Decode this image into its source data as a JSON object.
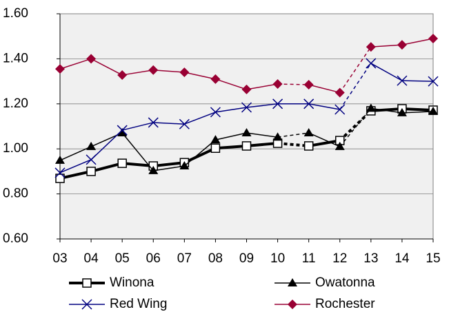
{
  "chart_data": {
    "type": "line",
    "categories": [
      "03",
      "04",
      "05",
      "06",
      "07",
      "08",
      "09",
      "10",
      "11",
      "12",
      "13",
      "14",
      "15"
    ],
    "ylim": [
      0.6,
      1.6
    ],
    "yticks": [
      {
        "value": 0.6,
        "label": "0.60"
      },
      {
        "value": 0.8,
        "label": "0.80"
      },
      {
        "value": 1.0,
        "label": "1.00"
      },
      {
        "value": 1.2,
        "label": "1.20"
      },
      {
        "value": 1.4,
        "label": "1.40"
      },
      {
        "value": 1.6,
        "label": "1.60"
      }
    ],
    "grid": true,
    "legend": "bottom",
    "series": [
      {
        "name": "Winona",
        "color": "#000000",
        "marker": "square",
        "width": 4,
        "dashed_after": [
          7,
          9
        ],
        "values": [
          0.869,
          0.9,
          0.936,
          0.924,
          0.939,
          1.003,
          1.013,
          1.025,
          1.013,
          1.037,
          1.169,
          1.178,
          1.172
        ]
      },
      {
        "name": "Owatonna",
        "color": "#000000",
        "marker": "triangle",
        "width": 1.5,
        "dashed_after": [
          7,
          9
        ],
        "values": [
          0.949,
          1.01,
          1.071,
          0.903,
          0.924,
          1.04,
          1.071,
          1.052,
          1.071,
          1.01,
          1.18,
          1.16,
          1.166
        ]
      },
      {
        "name": "Red Wing",
        "color": "#000080",
        "marker": "x",
        "width": 1.5,
        "dashed_after": [
          9
        ],
        "values": [
          0.894,
          0.952,
          1.083,
          1.117,
          1.11,
          1.163,
          1.184,
          1.2,
          1.2,
          1.175,
          1.38,
          1.303,
          1.3
        ]
      },
      {
        "name": "Rochester",
        "color": "#990033",
        "marker": "diamond",
        "width": 1.5,
        "dashed_after": [
          7,
          9
        ],
        "values": [
          1.355,
          1.4,
          1.328,
          1.35,
          1.34,
          1.31,
          1.264,
          1.288,
          1.285,
          1.25,
          1.453,
          1.462,
          1.49
        ]
      }
    ]
  }
}
